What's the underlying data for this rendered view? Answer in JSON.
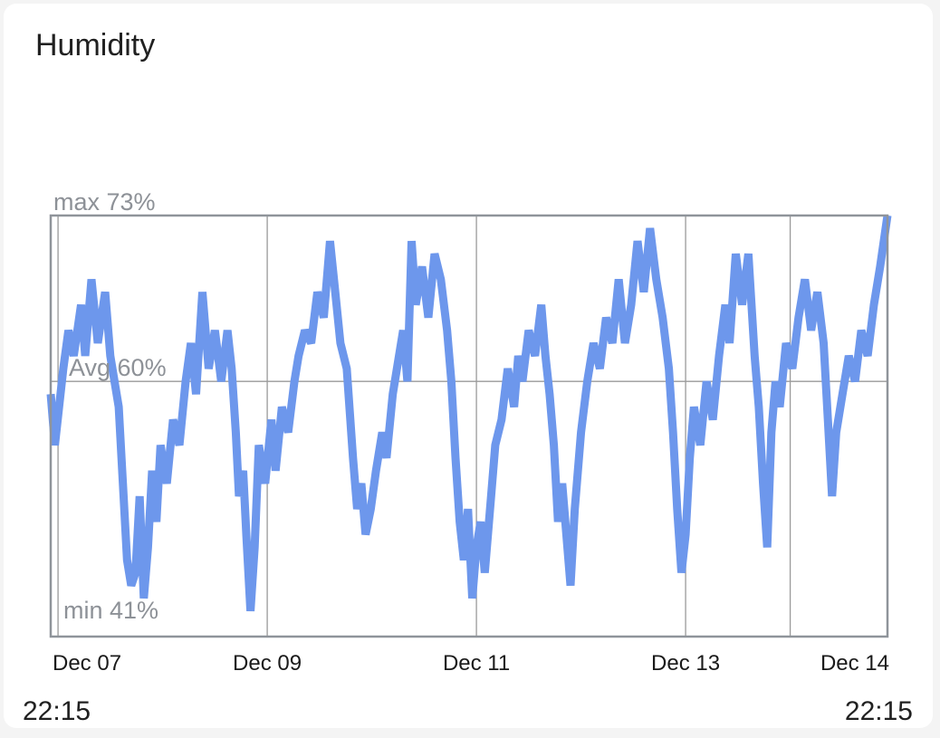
{
  "card": {
    "title": "Humidity",
    "time_start": "22:15",
    "time_end": "22:15"
  },
  "chart_data": {
    "type": "line",
    "title": "",
    "xlabel": "",
    "ylabel": "",
    "ylim": [
      40,
      73
    ],
    "grid": true,
    "annotations": {
      "max": "max 73%",
      "avg": "Avg 60%",
      "min": "min 41%"
    },
    "avg_value": 60,
    "x_tick_labels": [
      "Dec 07",
      "Dec 09",
      "Dec 11",
      "Dec 13",
      "Dec 14"
    ],
    "x_ticks_day": [
      7.0,
      9.0,
      11.0,
      13.0,
      14.0
    ],
    "x_domain_day": [
      6.93,
      14.93
    ],
    "colors": {
      "line": "#6d97ec",
      "grid": "#9a9a9a",
      "frame": "#8f949a",
      "label": "#8d9197"
    },
    "series": [
      {
        "values": [
          [
            6.93,
            59
          ],
          [
            6.97,
            55
          ],
          [
            7.05,
            61
          ],
          [
            7.1,
            64
          ],
          [
            7.15,
            62
          ],
          [
            7.22,
            66
          ],
          [
            7.26,
            62
          ],
          [
            7.32,
            68
          ],
          [
            7.38,
            63
          ],
          [
            7.45,
            67
          ],
          [
            7.5,
            62
          ],
          [
            7.58,
            58
          ],
          [
            7.62,
            52
          ],
          [
            7.66,
            46
          ],
          [
            7.7,
            44
          ],
          [
            7.74,
            45
          ],
          [
            7.78,
            51
          ],
          [
            7.82,
            43
          ],
          [
            7.86,
            47
          ],
          [
            7.9,
            53
          ],
          [
            7.94,
            49
          ],
          [
            7.98,
            55
          ],
          [
            8.04,
            52
          ],
          [
            8.1,
            57
          ],
          [
            8.16,
            55
          ],
          [
            8.22,
            60
          ],
          [
            8.27,
            63
          ],
          [
            8.32,
            59
          ],
          [
            8.38,
            67
          ],
          [
            8.44,
            61
          ],
          [
            8.5,
            64
          ],
          [
            8.56,
            60
          ],
          [
            8.62,
            64
          ],
          [
            8.66,
            61
          ],
          [
            8.7,
            56
          ],
          [
            8.73,
            51
          ],
          [
            8.77,
            53
          ],
          [
            8.8,
            48
          ],
          [
            8.84,
            42
          ],
          [
            8.88,
            47
          ],
          [
            8.92,
            55
          ],
          [
            8.98,
            52
          ],
          [
            9.04,
            57
          ],
          [
            9.08,
            53
          ],
          [
            9.14,
            58
          ],
          [
            9.2,
            56
          ],
          [
            9.26,
            60
          ],
          [
            9.3,
            62
          ],
          [
            9.36,
            64
          ],
          [
            9.42,
            63
          ],
          [
            9.48,
            67
          ],
          [
            9.54,
            65
          ],
          [
            9.6,
            71
          ],
          [
            9.65,
            67
          ],
          [
            9.7,
            63
          ],
          [
            9.76,
            61
          ],
          [
            9.82,
            54
          ],
          [
            9.86,
            50
          ],
          [
            9.9,
            52
          ],
          [
            9.94,
            48
          ],
          [
            9.99,
            50
          ],
          [
            10.04,
            53
          ],
          [
            10.1,
            56
          ],
          [
            10.14,
            54
          ],
          [
            10.2,
            59
          ],
          [
            10.24,
            61
          ],
          [
            10.3,
            64
          ],
          [
            10.34,
            60
          ],
          [
            10.38,
            71
          ],
          [
            10.42,
            66
          ],
          [
            10.48,
            69
          ],
          [
            10.54,
            65
          ],
          [
            10.6,
            70
          ],
          [
            10.66,
            68
          ],
          [
            10.72,
            64
          ],
          [
            10.76,
            60
          ],
          [
            10.8,
            54
          ],
          [
            10.84,
            49
          ],
          [
            10.88,
            46
          ],
          [
            10.92,
            50
          ],
          [
            10.96,
            43
          ],
          [
            11.0,
            47
          ],
          [
            11.04,
            49
          ],
          [
            11.08,
            45
          ],
          [
            11.14,
            51
          ],
          [
            11.18,
            55
          ],
          [
            11.24,
            57
          ],
          [
            11.3,
            61
          ],
          [
            11.36,
            58
          ],
          [
            11.4,
            62
          ],
          [
            11.44,
            60
          ],
          [
            11.5,
            64
          ],
          [
            11.56,
            62
          ],
          [
            11.62,
            66
          ],
          [
            11.66,
            62
          ],
          [
            11.7,
            59
          ],
          [
            11.74,
            55
          ],
          [
            11.78,
            49
          ],
          [
            11.82,
            52
          ],
          [
            11.86,
            48
          ],
          [
            11.9,
            44
          ],
          [
            11.94,
            50
          ],
          [
            12.0,
            56
          ],
          [
            12.06,
            60
          ],
          [
            12.12,
            63
          ],
          [
            12.18,
            61
          ],
          [
            12.24,
            65
          ],
          [
            12.3,
            63
          ],
          [
            12.36,
            68
          ],
          [
            12.42,
            63
          ],
          [
            12.48,
            66
          ],
          [
            12.54,
            71
          ],
          [
            12.6,
            67
          ],
          [
            12.66,
            72
          ],
          [
            12.72,
            68
          ],
          [
            12.78,
            65
          ],
          [
            12.84,
            61
          ],
          [
            12.88,
            56
          ],
          [
            12.92,
            50
          ],
          [
            12.96,
            45
          ],
          [
            13.0,
            48
          ],
          [
            13.04,
            54
          ],
          [
            13.08,
            58
          ],
          [
            13.14,
            55
          ],
          [
            13.2,
            60
          ],
          [
            13.26,
            57
          ],
          [
            13.32,
            62
          ],
          [
            13.38,
            66
          ],
          [
            13.42,
            63
          ],
          [
            13.48,
            70
          ],
          [
            13.54,
            66
          ],
          [
            13.6,
            70
          ],
          [
            13.66,
            62
          ],
          [
            13.7,
            58
          ],
          [
            13.74,
            52
          ],
          [
            13.78,
            47
          ],
          [
            13.82,
            56
          ],
          [
            13.86,
            60
          ],
          [
            13.9,
            58
          ],
          [
            13.96,
            63
          ],
          [
            14.02,
            61
          ],
          [
            14.08,
            65
          ],
          [
            14.14,
            68
          ],
          [
            14.2,
            64
          ],
          [
            14.26,
            67
          ],
          [
            14.32,
            63
          ],
          [
            14.36,
            57
          ],
          [
            14.4,
            51
          ],
          [
            14.44,
            56
          ],
          [
            14.5,
            59
          ],
          [
            14.56,
            62
          ],
          [
            14.62,
            60
          ],
          [
            14.68,
            64
          ],
          [
            14.74,
            62
          ],
          [
            14.8,
            66
          ],
          [
            14.86,
            69
          ],
          [
            14.93,
            73
          ]
        ]
      }
    ]
  }
}
